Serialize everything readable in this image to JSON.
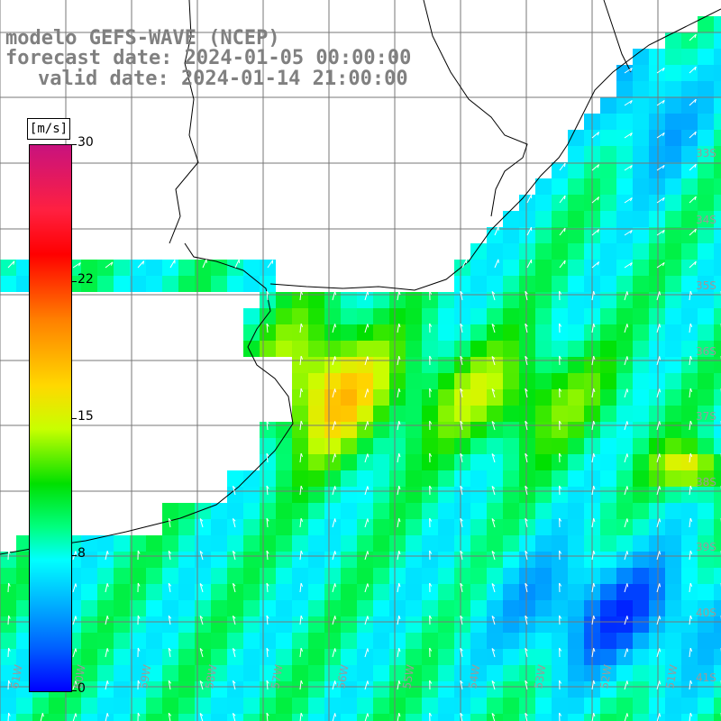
{
  "title": {
    "line1": "modelo GEFS-WAVE (NCEP)",
    "line2": "forecast date: 2024-01-05 00:00:00",
    "line3": "valid date: 2024-01-14 21:00:00"
  },
  "colorbar": {
    "unit": "[m/s]",
    "ticks": [
      "30",
      "22",
      "15",
      "8",
      "0"
    ],
    "colors": [
      "#c8127e",
      "#ff0000",
      "#ff8000",
      "#ffd800",
      "#00e000",
      "#00ffff",
      "#0000ff"
    ]
  },
  "map": {
    "lat_labels": [
      "33S",
      "34S",
      "35S",
      "36S",
      "37S",
      "38S",
      "39S",
      "40S",
      "41S"
    ],
    "lon_labels": [
      "61W",
      "60W",
      "59W",
      "58W",
      "57W",
      "56W",
      "55W",
      "54W",
      "53W",
      "52W",
      "51W"
    ],
    "ocean_color": "#00c8ff",
    "land_color": "#ffffff"
  }
}
